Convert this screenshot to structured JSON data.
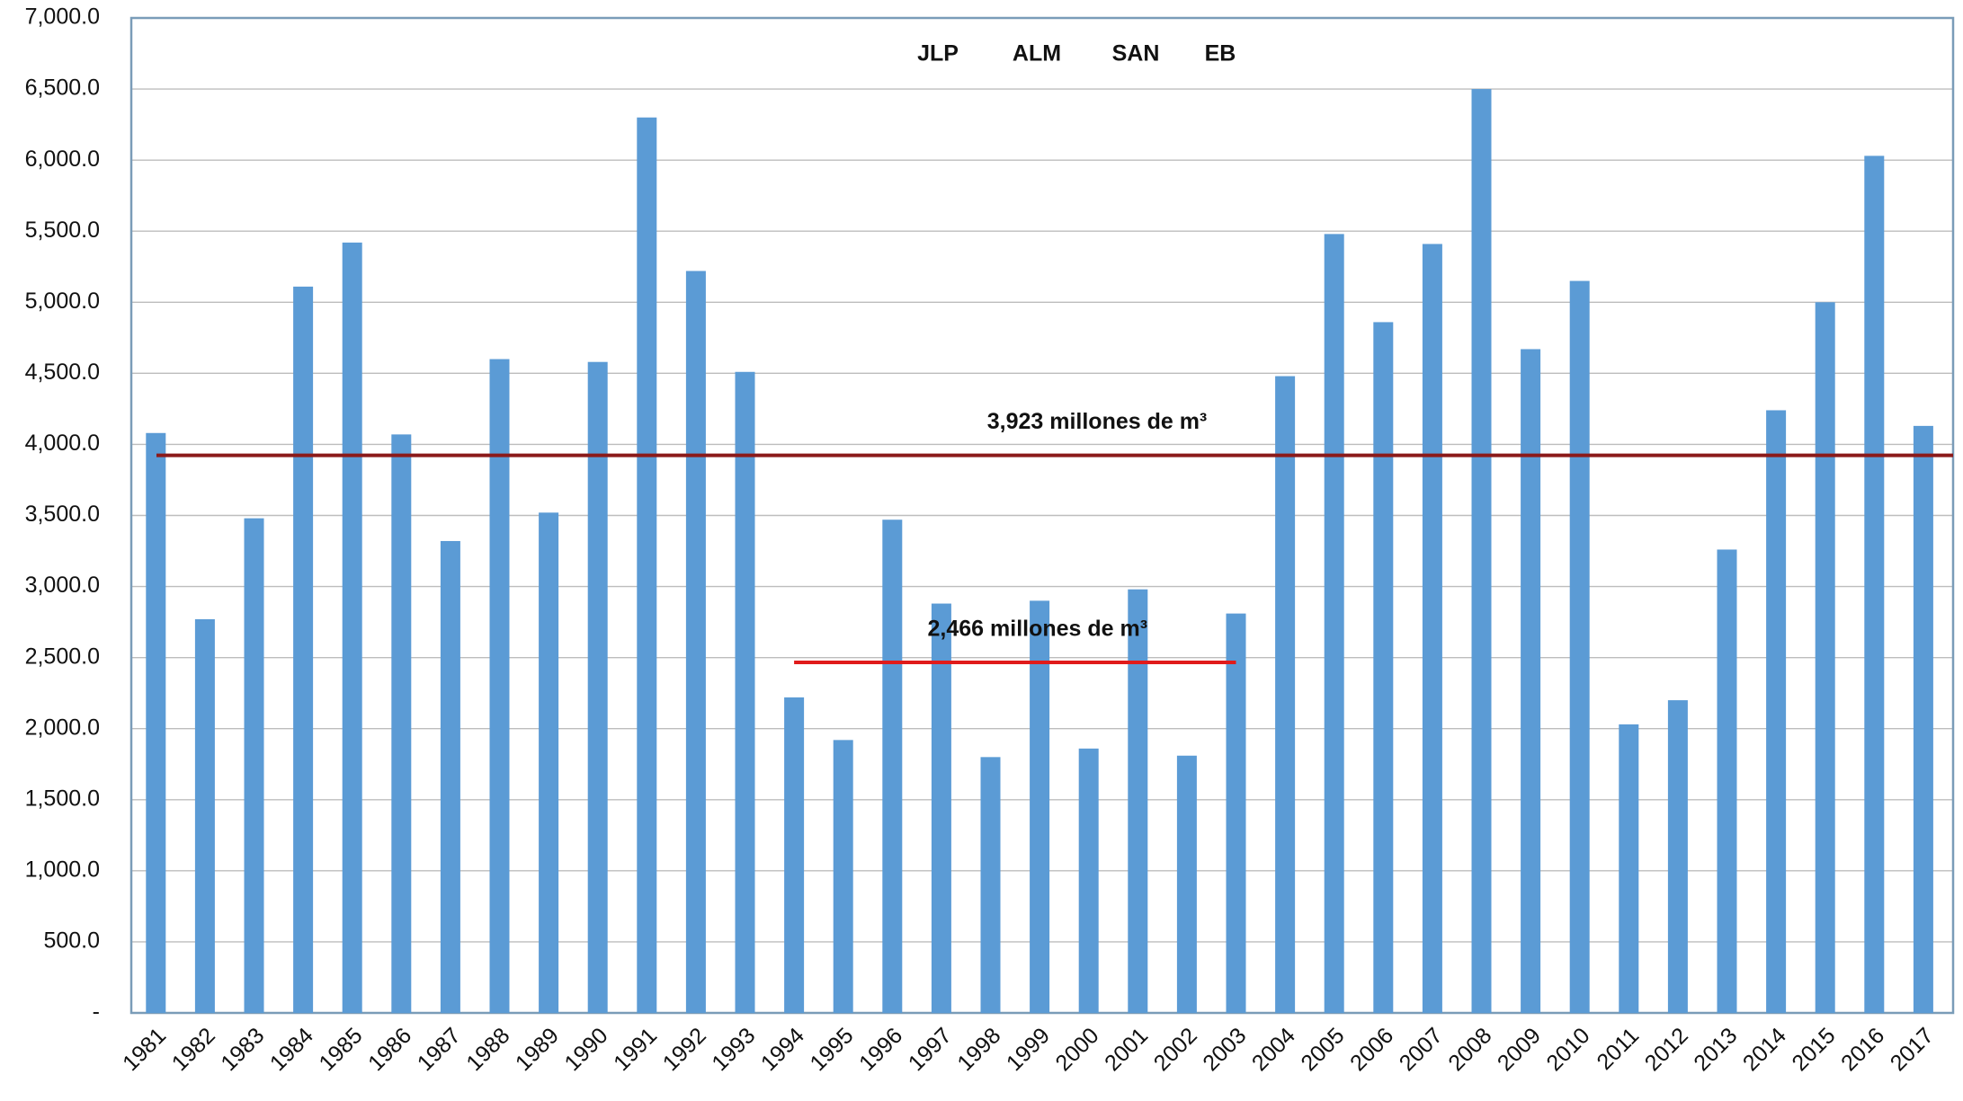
{
  "chart_data": {
    "type": "bar",
    "title_items": [
      "JLP",
      "ALM",
      "SAN",
      "EB"
    ],
    "categories": [
      "1981",
      "1982",
      "1983",
      "1984",
      "1985",
      "1986",
      "1987",
      "1988",
      "1989",
      "1990",
      "1991",
      "1992",
      "1993",
      "1994",
      "1995",
      "1996",
      "1997",
      "1998",
      "1999",
      "2000",
      "2001",
      "2002",
      "2003",
      "2004",
      "2005",
      "2006",
      "2007",
      "2008",
      "2009",
      "2010",
      "2011",
      "2012",
      "2013",
      "2014",
      "2015",
      "2016",
      "2017"
    ],
    "values": [
      4080,
      2770,
      3480,
      5110,
      5420,
      4070,
      3320,
      4600,
      3520,
      4580,
      6300,
      5220,
      4510,
      2220,
      1920,
      3470,
      2880,
      1800,
      2900,
      1860,
      2980,
      1810,
      2810,
      4480,
      5480,
      4860,
      5410,
      6500,
      4670,
      5150,
      2030,
      2200,
      3260,
      4240,
      5000,
      6030,
      4130
    ],
    "color": "#5b9bd5",
    "ylim": [
      0,
      7000
    ],
    "yticks": [
      {
        "value": 0,
        "label": "-"
      },
      {
        "value": 500,
        "label": "500.0"
      },
      {
        "value": 1000,
        "label": "1,000.0"
      },
      {
        "value": 1500,
        "label": "1,500.0"
      },
      {
        "value": 2000,
        "label": "2,000.0"
      },
      {
        "value": 2500,
        "label": "2,500.0"
      },
      {
        "value": 3000,
        "label": "3,000.0"
      },
      {
        "value": 3500,
        "label": "3,500.0"
      },
      {
        "value": 4000,
        "label": "4,000.0"
      },
      {
        "value": 4500,
        "label": "4,500.0"
      },
      {
        "value": 5000,
        "label": "5,000.0"
      },
      {
        "value": 5500,
        "label": "5,500.0"
      },
      {
        "value": 6000,
        "label": "6,000.0"
      },
      {
        "value": 6500,
        "label": "6,500.0"
      },
      {
        "value": 7000,
        "label": "7,000.0"
      }
    ],
    "grid": true,
    "reference_lines": [
      {
        "value": 3923,
        "label": "3,923 millones de m³",
        "color": "#8b1a1a"
      },
      {
        "value": 2466,
        "label": "2,466 millones de m³",
        "color": "#e01b1b",
        "from": "1994",
        "to": "2003"
      }
    ]
  }
}
